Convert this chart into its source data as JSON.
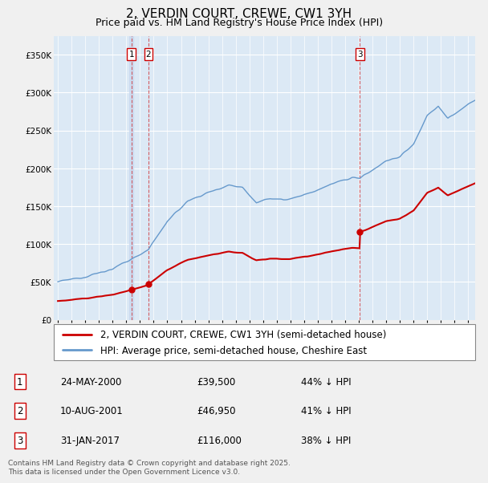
{
  "title": "2, VERDIN COURT, CREWE, CW1 3YH",
  "subtitle": "Price paid vs. HM Land Registry's House Price Index (HPI)",
  "ytick_values": [
    0,
    50000,
    100000,
    150000,
    200000,
    250000,
    300000,
    350000
  ],
  "ylim": [
    0,
    375000
  ],
  "xlim_start": 1994.7,
  "xlim_end": 2025.5,
  "background_color": "#f0f0f0",
  "plot_bg_color": "#dce9f5",
  "grid_color": "#ffffff",
  "sale_color": "#cc0000",
  "hpi_color": "#6699cc",
  "legend_sale_label": "2, VERDIN COURT, CREWE, CW1 3YH (semi-detached house)",
  "legend_hpi_label": "HPI: Average price, semi-detached house, Cheshire East",
  "transactions": [
    {
      "num": 1,
      "date_label": "24-MAY-2000",
      "price": 39500,
      "pct": "44%",
      "year": 2000.38,
      "x_line": 2000.38
    },
    {
      "num": 2,
      "date_label": "10-AUG-2001",
      "price": 46950,
      "pct": "41%",
      "year": 2001.62,
      "x_line": 2001.62
    },
    {
      "num": 3,
      "date_label": "31-JAN-2017",
      "price": 116000,
      "pct": "38%",
      "year": 2017.08,
      "x_line": 2017.08
    }
  ],
  "footer": "Contains HM Land Registry data © Crown copyright and database right 2025.\nThis data is licensed under the Open Government Licence v3.0.",
  "title_fontsize": 11,
  "subtitle_fontsize": 9,
  "tick_fontsize": 7.5,
  "legend_fontsize": 8.5,
  "table_fontsize": 8.5,
  "footer_fontsize": 6.5
}
